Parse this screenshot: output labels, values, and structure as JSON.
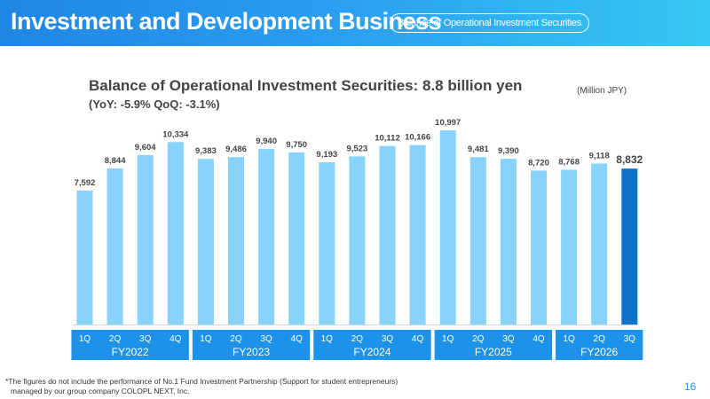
{
  "header": {
    "title": "Investment and Development Business",
    "pill": "Balance of Operational Investment Securities"
  },
  "chart_title": "Balance of Operational Investment Securities: 8.8 billion yen",
  "chart_subtitle": "(YoY: -5.9% QoQ: -3.1%)",
  "unit": "(Million JPY)",
  "footnote": {
    "line1": "*The figures do not include the performance of No.1 Fund Investment Partnership (Support for student entrepreneurs)",
    "line2": "managed by our group company COLOPL NEXT, Inc."
  },
  "page_number": "16",
  "colors": {
    "bar": "#87d3fb",
    "highlight_bar": "#0e72c9",
    "axis_band": "#1c92ea"
  },
  "chart_data": {
    "type": "bar",
    "categories": [
      "1Q",
      "2Q",
      "3Q",
      "4Q",
      "1Q",
      "2Q",
      "3Q",
      "4Q",
      "1Q",
      "2Q",
      "3Q",
      "4Q",
      "1Q",
      "2Q",
      "3Q",
      "4Q",
      "1Q",
      "2Q",
      "3Q"
    ],
    "groups": [
      {
        "name": "FY2022",
        "count": 4
      },
      {
        "name": "FY2023",
        "count": 4
      },
      {
        "name": "FY2024",
        "count": 4
      },
      {
        "name": "FY2025",
        "count": 4
      },
      {
        "name": "FY2026",
        "count": 3
      }
    ],
    "values": [
      7592,
      8844,
      9604,
      10334,
      9383,
      9486,
      9940,
      9750,
      9193,
      9523,
      10112,
      10166,
      10997,
      9481,
      9390,
      8720,
      8768,
      9118,
      8832
    ],
    "value_labels": [
      "7,592",
      "8,844",
      "9,604",
      "10,334",
      "9,383",
      "9,486",
      "9,940",
      "9,750",
      "9,193",
      "9,523",
      "10,112",
      "10,166",
      "10,997",
      "9,481",
      "9,390",
      "8,720",
      "8,768",
      "9,118",
      "8,832"
    ],
    "highlight_index": 18,
    "ylim": [
      0,
      11000
    ],
    "title": "Balance of Operational Investment Securities: 8.8 billion yen",
    "ylabel": "(Million JPY)",
    "grid": false
  }
}
